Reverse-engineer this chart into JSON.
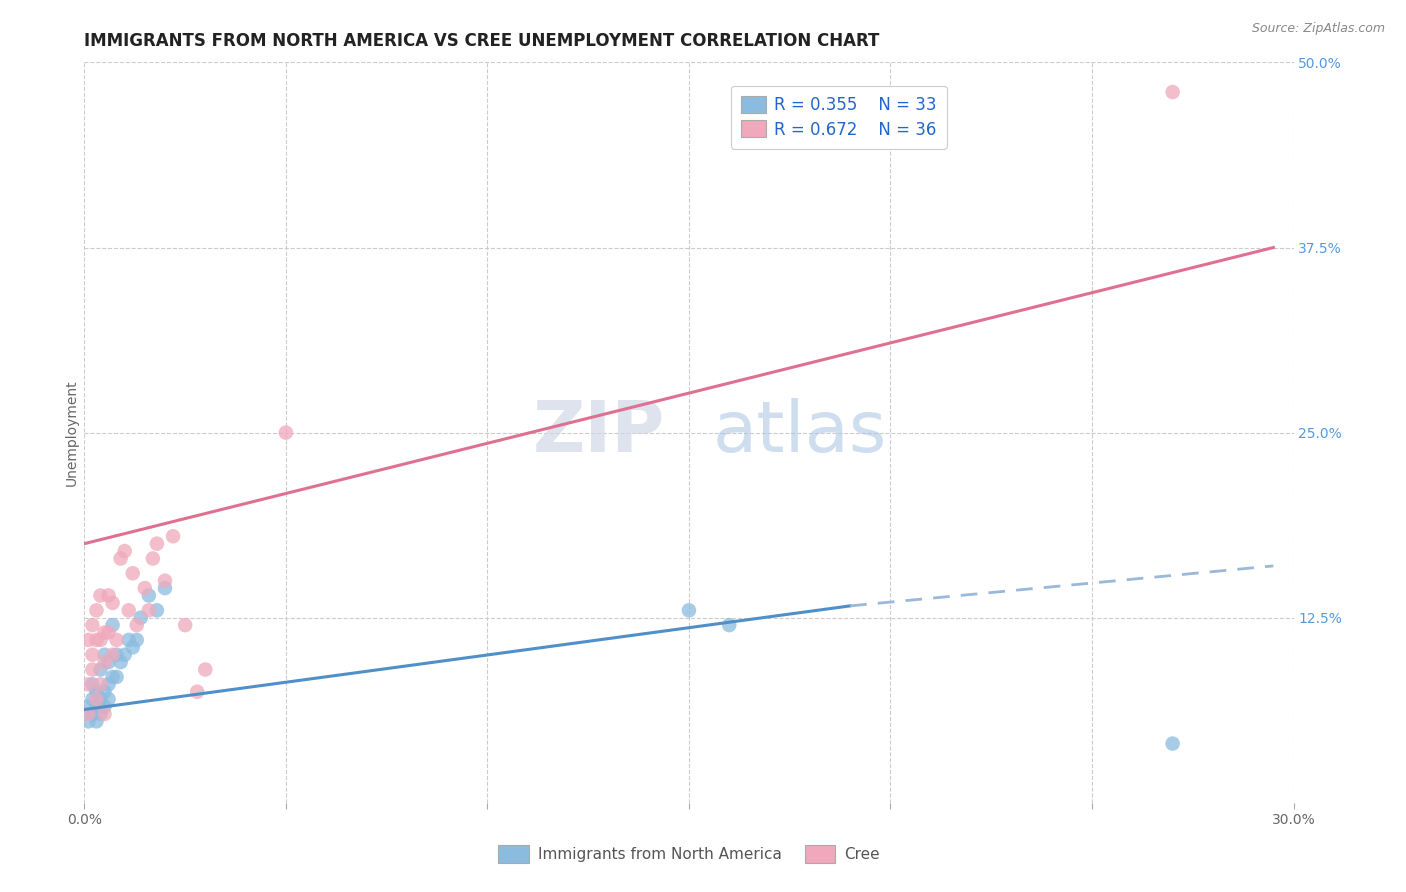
{
  "title": "IMMIGRANTS FROM NORTH AMERICA VS CREE UNEMPLOYMENT CORRELATION CHART",
  "source": "Source: ZipAtlas.com",
  "ylabel": "Unemployment",
  "xlim": [
    0.0,
    0.3
  ],
  "ylim": [
    0.0,
    0.5
  ],
  "xticks": [
    0.0,
    0.05,
    0.1,
    0.15,
    0.2,
    0.25,
    0.3
  ],
  "xticklabels": [
    "0.0%",
    "",
    "",
    "",
    "",
    "",
    "30.0%"
  ],
  "yticks_right": [
    0.125,
    0.25,
    0.375,
    0.5
  ],
  "yticklabels_right": [
    "12.5%",
    "25.0%",
    "37.5%",
    "50.0%"
  ],
  "blue_color": "#8bbcdf",
  "pink_color": "#f0a8bc",
  "blue_label": "Immigrants from North America",
  "pink_label": "Cree",
  "legend_r_blue": "R = 0.355",
  "legend_n_blue": "N = 33",
  "legend_r_pink": "R = 0.672",
  "legend_n_pink": "N = 36",
  "watermark_zip": "ZIP",
  "watermark_atlas": "atlas",
  "blue_scatter_x": [
    0.001,
    0.001,
    0.002,
    0.002,
    0.002,
    0.003,
    0.003,
    0.003,
    0.004,
    0.004,
    0.004,
    0.005,
    0.005,
    0.005,
    0.006,
    0.006,
    0.006,
    0.007,
    0.007,
    0.008,
    0.008,
    0.009,
    0.01,
    0.011,
    0.012,
    0.013,
    0.014,
    0.016,
    0.018,
    0.02,
    0.15,
    0.16,
    0.27
  ],
  "blue_scatter_y": [
    0.055,
    0.065,
    0.06,
    0.07,
    0.08,
    0.055,
    0.065,
    0.075,
    0.06,
    0.07,
    0.09,
    0.065,
    0.075,
    0.1,
    0.07,
    0.08,
    0.095,
    0.085,
    0.12,
    0.085,
    0.1,
    0.095,
    0.1,
    0.11,
    0.105,
    0.11,
    0.125,
    0.14,
    0.13,
    0.145,
    0.13,
    0.12,
    0.04
  ],
  "pink_scatter_x": [
    0.001,
    0.001,
    0.001,
    0.002,
    0.002,
    0.002,
    0.003,
    0.003,
    0.003,
    0.004,
    0.004,
    0.004,
    0.005,
    0.005,
    0.005,
    0.006,
    0.006,
    0.007,
    0.007,
    0.008,
    0.009,
    0.01,
    0.011,
    0.012,
    0.013,
    0.015,
    0.016,
    0.017,
    0.018,
    0.02,
    0.022,
    0.025,
    0.028,
    0.03,
    0.05,
    0.27
  ],
  "pink_scatter_y": [
    0.06,
    0.08,
    0.11,
    0.09,
    0.1,
    0.12,
    0.07,
    0.11,
    0.13,
    0.08,
    0.11,
    0.14,
    0.06,
    0.095,
    0.115,
    0.115,
    0.14,
    0.1,
    0.135,
    0.11,
    0.165,
    0.17,
    0.13,
    0.155,
    0.12,
    0.145,
    0.13,
    0.165,
    0.175,
    0.15,
    0.18,
    0.12,
    0.075,
    0.09,
    0.25,
    0.48
  ],
  "blue_line_x0": 0.0,
  "blue_line_y0": 0.063,
  "blue_line_x1_solid": 0.19,
  "blue_line_y1_solid": 0.133,
  "blue_line_x1_dash": 0.295,
  "blue_line_y1_dash": 0.16,
  "pink_line_x0": 0.0,
  "pink_line_y0": 0.175,
  "pink_line_x1": 0.295,
  "pink_line_y1": 0.375,
  "title_fontsize": 12,
  "source_fontsize": 9,
  "axis_label_fontsize": 10,
  "tick_fontsize": 10,
  "legend_fontsize": 12,
  "watermark_fontsize": 52
}
